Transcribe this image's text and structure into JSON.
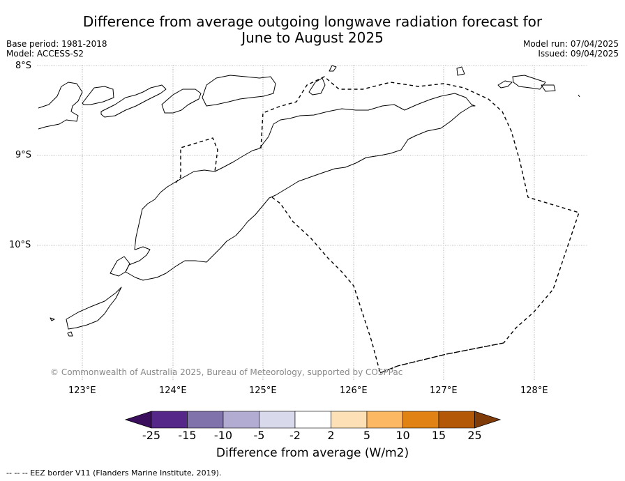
{
  "title": {
    "line1": "Difference from average outgoing longwave radiation forecast for",
    "line2": "June to August 2025"
  },
  "meta": {
    "base_period": "Base period: 1981-2018",
    "model": "Model: ACCESS-S2",
    "model_run": "Model run: 07/04/2025",
    "issued": "Issued: 09/04/2025"
  },
  "map": {
    "lat_labels": [
      "8°S",
      "9°S",
      "10°S"
    ],
    "lon_labels": [
      "123°E",
      "124°E",
      "125°E",
      "126°E",
      "127°E",
      "128°E"
    ],
    "copyright": "© Commonwealth of Australia 2025, Bureau of Meteorology, supported by COSPPac"
  },
  "colorbar": {
    "label": "Difference from average (W/m2)",
    "ticks": [
      "-25",
      "-15",
      "-10",
      "-5",
      "-2",
      "2",
      "5",
      "10",
      "15",
      "25"
    ],
    "colors": [
      "#3a0e5c",
      "#542788",
      "#8073ac",
      "#b2abd2",
      "#d8daeb",
      "#ffffff",
      "#fee0b6",
      "#fdb863",
      "#e08214",
      "#b35806",
      "#7f3b08"
    ]
  },
  "footer": "-- -- -- EEZ border V11 (Flanders Marine Institute, 2019)."
}
